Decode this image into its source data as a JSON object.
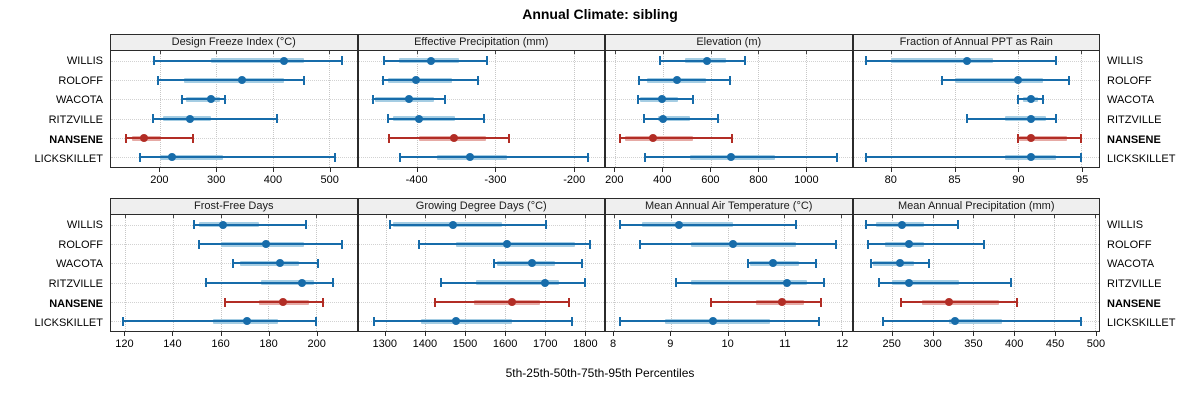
{
  "title": "Annual Climate: sibling",
  "xlabel": "5th-25th-50th-75th-95th Percentiles",
  "sites": [
    {
      "name": "WILLIS",
      "bold": false,
      "color": "blue"
    },
    {
      "name": "ROLOFF",
      "bold": false,
      "color": "blue"
    },
    {
      "name": "WACOTA",
      "bold": false,
      "color": "blue"
    },
    {
      "name": "RITZVILLE",
      "bold": false,
      "color": "blue"
    },
    {
      "name": "NANSENE",
      "bold": true,
      "color": "red"
    },
    {
      "name": "LICKSKILLET",
      "bold": false,
      "color": "blue"
    }
  ],
  "colors": {
    "blue": "#176caa",
    "blue_band": "#a5cde3",
    "red": "#b22d25",
    "red_band": "#e6aaa5",
    "grid": "#c7c7c7",
    "strip_bg": "#efefef",
    "panel_border": "#2b2b2b"
  },
  "chart_data": {
    "type": "scatter",
    "style": "percentile-interval-dotplot",
    "percentiles_shown": [
      5,
      25,
      50,
      75,
      95
    ],
    "legend_position": "none",
    "grid": "dotted",
    "rows_of_panels": 2,
    "cols_of_panels": 4,
    "categories": [
      "WILLIS",
      "ROLOFF",
      "WACOTA",
      "RITZVILLE",
      "NANSENE",
      "LICKSKILLET"
    ],
    "panels": [
      {
        "title": "Design Freeze Index (°C)",
        "row": 0,
        "col": 0,
        "xlim": [
          113,
          549
        ],
        "ticks": [
          200,
          300,
          400,
          500
        ],
        "values": [
          [
            190,
            290,
            420,
            455,
            523
          ],
          [
            196,
            242,
            346,
            420,
            455
          ],
          [
            239,
            246,
            290,
            306,
            316
          ],
          [
            188,
            205,
            254,
            290,
            407
          ],
          [
            140,
            150,
            172,
            201,
            258
          ],
          [
            165,
            200,
            222,
            312,
            510
          ]
        ]
      },
      {
        "title": "Effective Precipitation (mm)",
        "row": 0,
        "col": 1,
        "xlim": [
          -475,
          -161
        ],
        "ticks": [
          -400,
          -300,
          -200
        ],
        "values": [
          [
            -442,
            -423,
            -382,
            -346,
            -311
          ],
          [
            -444,
            -437,
            -401,
            -355,
            -322
          ],
          [
            -456,
            -454,
            -411,
            -378,
            -364
          ],
          [
            -437,
            -431,
            -398,
            -351,
            -314
          ],
          [
            -436,
            -397,
            -353,
            -312,
            -283
          ],
          [
            -422,
            -374,
            -333,
            -285,
            -181
          ]
        ]
      },
      {
        "title": "Elevation (m)",
        "row": 0,
        "col": 2,
        "xlim": [
          161,
          1192
        ],
        "ticks": [
          200,
          400,
          600,
          800,
          1000
        ],
        "values": [
          [
            388,
            493,
            585,
            667,
            744
          ],
          [
            298,
            332,
            460,
            583,
            681
          ],
          [
            295,
            305,
            396,
            465,
            525
          ],
          [
            321,
            381,
            400,
            514,
            632
          ],
          [
            221,
            242,
            360,
            528,
            692
          ],
          [
            325,
            514,
            688,
            869,
            1131
          ]
        ]
      },
      {
        "title": "Fraction of Annual PPT as Rain",
        "row": 0,
        "col": 3,
        "xlim": [
          77,
          96.4
        ],
        "ticks": [
          80,
          85,
          90,
          95
        ],
        "values": [
          [
            78,
            80,
            86,
            88,
            93
          ],
          [
            84,
            85,
            90,
            92,
            94
          ],
          [
            90,
            90.4,
            91,
            91.6,
            92
          ],
          [
            86,
            89,
            91,
            92.2,
            93
          ],
          [
            90,
            90.1,
            91,
            93.9,
            95
          ],
          [
            78,
            89,
            91,
            93,
            95
          ]
        ]
      },
      {
        "title": "Frost-Free Days",
        "row": 1,
        "col": 0,
        "xlim": [
          114,
          217
        ],
        "ticks": [
          120,
          140,
          160,
          180,
          200
        ],
        "values": [
          [
            149,
            151,
            161,
            176,
            196
          ],
          [
            151,
            160,
            179,
            195,
            211
          ],
          [
            165,
            168,
            185,
            193,
            201
          ],
          [
            154,
            177,
            194,
            199,
            207
          ],
          [
            162,
            176,
            186,
            197,
            203
          ],
          [
            119,
            157,
            171,
            184,
            200
          ]
        ]
      },
      {
        "title": "Growing Degree Days (°C)",
        "row": 1,
        "col": 1,
        "xlim": [
          1232,
          1849
        ],
        "ticks": [
          1300,
          1400,
          1500,
          1600,
          1700,
          1800
        ],
        "values": [
          [
            1312,
            1318,
            1470,
            1593,
            1703
          ],
          [
            1383,
            1477,
            1606,
            1777,
            1814
          ],
          [
            1572,
            1581,
            1667,
            1727,
            1793
          ],
          [
            1439,
            1527,
            1700,
            1735,
            1801
          ],
          [
            1425,
            1522,
            1618,
            1689,
            1762
          ],
          [
            1270,
            1389,
            1478,
            1618,
            1768
          ]
        ]
      },
      {
        "title": "Mean Annual Air Temperature (°C)",
        "row": 1,
        "col": 2,
        "xlim": [
          7.86,
          12.18
        ],
        "ticks": [
          8,
          9,
          10,
          11,
          12
        ],
        "values": [
          [
            8.1,
            8.5,
            9.15,
            10.1,
            11.2
          ],
          [
            8.45,
            9.35,
            10.1,
            11.2,
            11.9
          ],
          [
            10.35,
            10.4,
            10.8,
            11.25,
            11.55
          ],
          [
            9.1,
            9.35,
            11.05,
            11.4,
            11.7
          ],
          [
            9.7,
            10.5,
            10.95,
            11.35,
            11.65
          ],
          [
            8.1,
            8.9,
            9.75,
            10.75,
            11.6
          ]
        ]
      },
      {
        "title": "Mean Annual Precipitation (mm)",
        "row": 1,
        "col": 3,
        "xlim": [
          202,
          505
        ],
        "ticks": [
          250,
          300,
          350,
          400,
          450,
          500
        ],
        "values": [
          [
            218,
            230,
            262,
            289,
            331
          ],
          [
            220,
            241,
            271,
            289,
            363
          ],
          [
            223,
            226,
            259,
            277,
            295
          ],
          [
            234,
            249,
            270,
            332,
            396
          ],
          [
            261,
            287,
            320,
            381,
            404
          ],
          [
            239,
            320,
            327,
            385,
            483
          ]
        ]
      }
    ]
  }
}
